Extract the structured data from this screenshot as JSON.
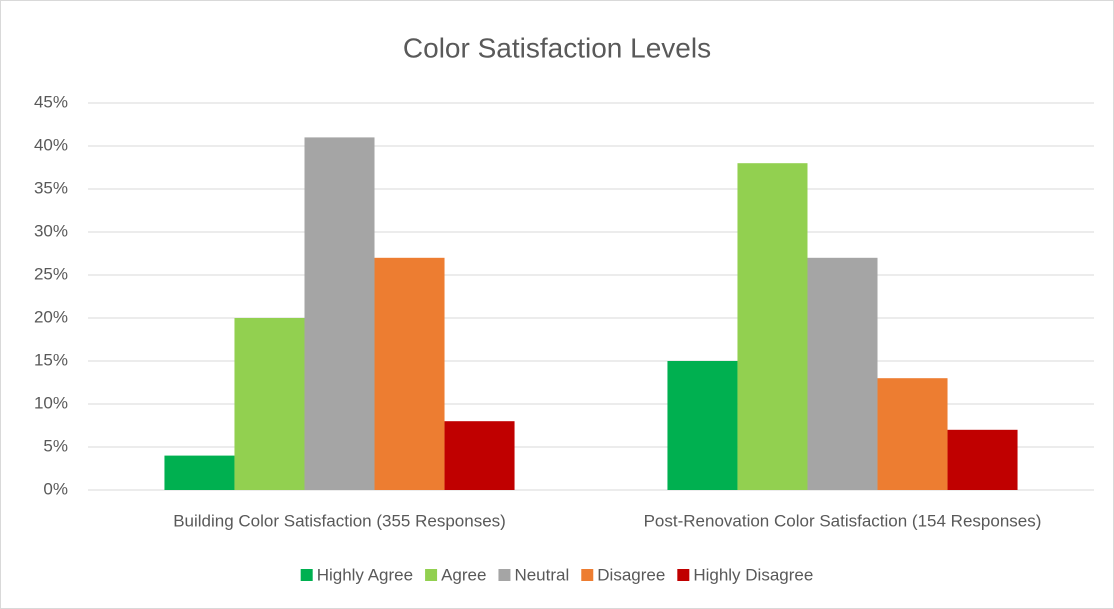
{
  "chart_data": {
    "type": "bar",
    "title": "Color Satisfaction Levels",
    "categories": [
      "Building Color Satisfaction (355 Responses)",
      "Post-Renovation Color Satisfaction (154 Responses)"
    ],
    "series": [
      {
        "name": "Highly Agree",
        "color": "#00b050",
        "values": [
          4,
          15
        ]
      },
      {
        "name": "Agree",
        "color": "#92d050",
        "values": [
          20,
          38
        ]
      },
      {
        "name": "Neutral",
        "color": "#a5a5a5",
        "values": [
          41,
          27
        ]
      },
      {
        "name": "Disagree",
        "color": "#ed7d31",
        "values": [
          27,
          13
        ]
      },
      {
        "name": "Highly Disagree",
        "color": "#c00000",
        "values": [
          8,
          7
        ]
      }
    ],
    "ylim": [
      0,
      45
    ],
    "yticks": [
      {
        "value": 0,
        "label": "0%"
      },
      {
        "value": 5,
        "label": "5%"
      },
      {
        "value": 10,
        "label": "10%"
      },
      {
        "value": 15,
        "label": "15%"
      },
      {
        "value": 20,
        "label": "20%"
      },
      {
        "value": 25,
        "label": "25%"
      },
      {
        "value": 30,
        "label": "30%"
      },
      {
        "value": 35,
        "label": "35%"
      },
      {
        "value": 40,
        "label": "40%"
      },
      {
        "value": 45,
        "label": "45%"
      }
    ],
    "grid": true,
    "legend": "bottom"
  }
}
